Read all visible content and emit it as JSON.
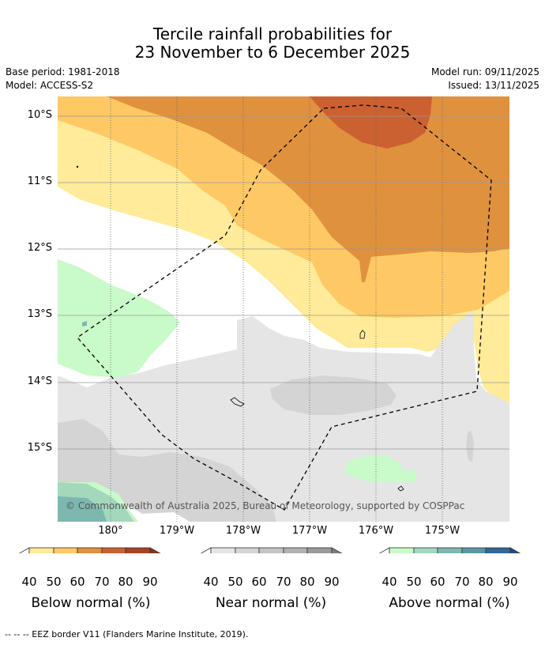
{
  "title": {
    "line1": "Tercile rainfall probabilities for",
    "line2": "23 November to 6 December 2025"
  },
  "meta": {
    "base_period": "Base period: 1981-2018",
    "model": "Model: ACCESS-S2",
    "model_run": "Model run: 09/11/2025",
    "issued": "Issued: 13/11/2025"
  },
  "map": {
    "lat_labels": [
      "10°S",
      "11°S",
      "12°S",
      "13°S",
      "14°S",
      "15°S"
    ],
    "lon_labels": [
      "180°",
      "179°W",
      "178°W",
      "177°W",
      "176°W",
      "175°W"
    ],
    "copyright": "© Commonwealth of Australia 2025, Bureau of Meteorology, supported by COSPPac",
    "colors": {
      "below": [
        "#ffeb99",
        "#fec965",
        "#e0913e",
        "#cb6031",
        "#a84424",
        "#8c2f1a"
      ],
      "near": [
        "#e5e5e5",
        "#d4d4d4",
        "#c4c4c4",
        "#b1b1b1",
        "#9b9b9b",
        "#7e7e7e"
      ],
      "above": [
        "#c9fac9",
        "#a3d8bd",
        "#7db7b0",
        "#5a96a3",
        "#336699",
        "#1c4f86"
      ]
    }
  },
  "colorbars": [
    {
      "label": "Below normal (%)",
      "ticks": [
        "40",
        "50",
        "60",
        "70",
        "80",
        "90"
      ]
    },
    {
      "label": "Near normal (%)",
      "ticks": [
        "40",
        "50",
        "60",
        "70",
        "80",
        "90"
      ]
    },
    {
      "label": "Above normal (%)",
      "ticks": [
        "40",
        "50",
        "60",
        "70",
        "80",
        "90"
      ]
    }
  ],
  "footnote": "-- -- -- EEZ border V11 (Flanders Marine Institute, 2019)."
}
